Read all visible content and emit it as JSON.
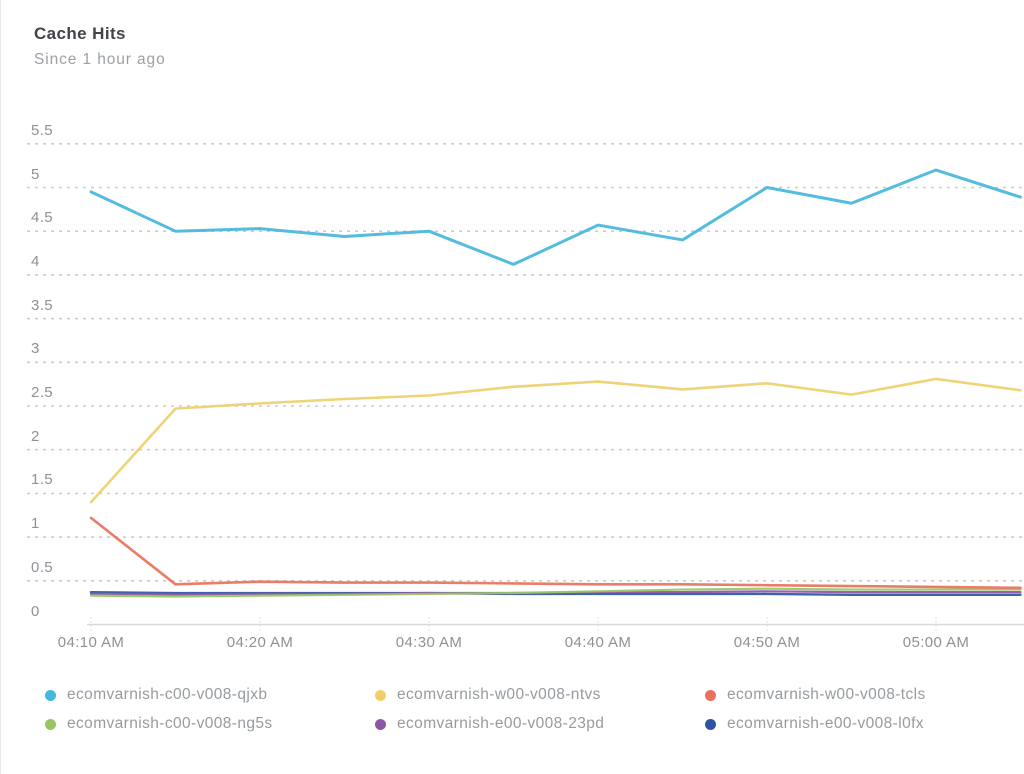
{
  "header": {
    "title": "Cache Hits",
    "subtitle": "Since 1 hour ago"
  },
  "chart_data": {
    "type": "line",
    "title": "Cache Hits",
    "subtitle": "Since 1 hour ago",
    "xlabel": "",
    "ylabel": "",
    "ylim": [
      0,
      5.75
    ],
    "grid": "dotted horizontal lines",
    "legend_position": "bottom",
    "y_tick_labels": [
      "0",
      "0.5",
      "1",
      "1.5",
      "2",
      "2.5",
      "3",
      "3.5",
      "4",
      "4.5",
      "5",
      "5.5"
    ],
    "y_tick_values": [
      0,
      0.5,
      1,
      1.5,
      2,
      2.5,
      3,
      3.5,
      4,
      4.5,
      5,
      5.5
    ],
    "x_tick_labels": [
      "04:10 AM",
      "04:20 AM",
      "04:30 AM",
      "04:40 AM",
      "04:50 AM",
      "05:00 AM"
    ],
    "x_sample_times": [
      "04:10 AM",
      "04:15 AM",
      "04:20 AM",
      "04:25 AM",
      "04:30 AM",
      "04:35 AM",
      "04:40 AM",
      "04:45 AM",
      "04:50 AM",
      "04:55 AM",
      "05:00 AM",
      "05:05 AM"
    ],
    "series": [
      {
        "name": "ecomvarnish-c00-v008-qjxb",
        "color": "#45b6dc",
        "width": 3,
        "values": [
          4.95,
          4.5,
          4.53,
          4.44,
          4.5,
          4.12,
          4.57,
          4.4,
          5.0,
          4.82,
          5.2,
          4.89
        ]
      },
      {
        "name": "ecomvarnish-w00-v008-ntvs",
        "color": "#eed06b",
        "width": 2.6,
        "values": [
          1.4,
          2.47,
          2.53,
          2.58,
          2.62,
          2.72,
          2.78,
          2.69,
          2.76,
          2.63,
          2.81,
          2.68
        ]
      },
      {
        "name": "ecomvarnish-w00-v008-tcls",
        "color": "#e8715c",
        "width": 2.6,
        "values": [
          1.22,
          0.46,
          0.49,
          0.48,
          0.48,
          0.47,
          0.46,
          0.46,
          0.45,
          0.44,
          0.43,
          0.42
        ]
      },
      {
        "name": "ecomvarnish-c00-v008-ng5s",
        "color": "#98c564",
        "width": 2.2,
        "values": [
          0.33,
          0.32,
          0.33,
          0.34,
          0.35,
          0.36,
          0.38,
          0.4,
          0.41,
          0.4,
          0.4,
          0.4
        ]
      },
      {
        "name": "ecomvarnish-e00-v008-23pd",
        "color": "#8c56a4",
        "width": 2.2,
        "values": [
          0.35,
          0.34,
          0.35,
          0.35,
          0.36,
          0.36,
          0.37,
          0.37,
          0.38,
          0.37,
          0.37,
          0.37
        ]
      },
      {
        "name": "ecomvarnish-e00-v008-l0fx",
        "color": "#2f52a5",
        "width": 2.4,
        "values": [
          0.37,
          0.36,
          0.36,
          0.36,
          0.36,
          0.35,
          0.35,
          0.35,
          0.35,
          0.34,
          0.34,
          0.34
        ]
      }
    ]
  },
  "legend": {
    "items": [
      {
        "label": "ecomvarnish-c00-v008-qjxb",
        "color": "#45b6dc"
      },
      {
        "label": "ecomvarnish-w00-v008-ntvs",
        "color": "#eed06b"
      },
      {
        "label": "ecomvarnish-w00-v008-tcls",
        "color": "#e8715c"
      },
      {
        "label": "ecomvarnish-c00-v008-ng5s",
        "color": "#98c564"
      },
      {
        "label": "ecomvarnish-e00-v008-23pd",
        "color": "#8c56a4"
      },
      {
        "label": "ecomvarnish-e00-v008-l0fx",
        "color": "#2f52a5"
      }
    ]
  },
  "colors": {
    "title_text": "#404449",
    "subtitle_text": "#9ba1a6",
    "axis_text": "#8d9297",
    "legend_text": "#969b9f",
    "gridline": "#cccccc",
    "axis_line": "#d9d9d9",
    "background": "#ffffff"
  }
}
